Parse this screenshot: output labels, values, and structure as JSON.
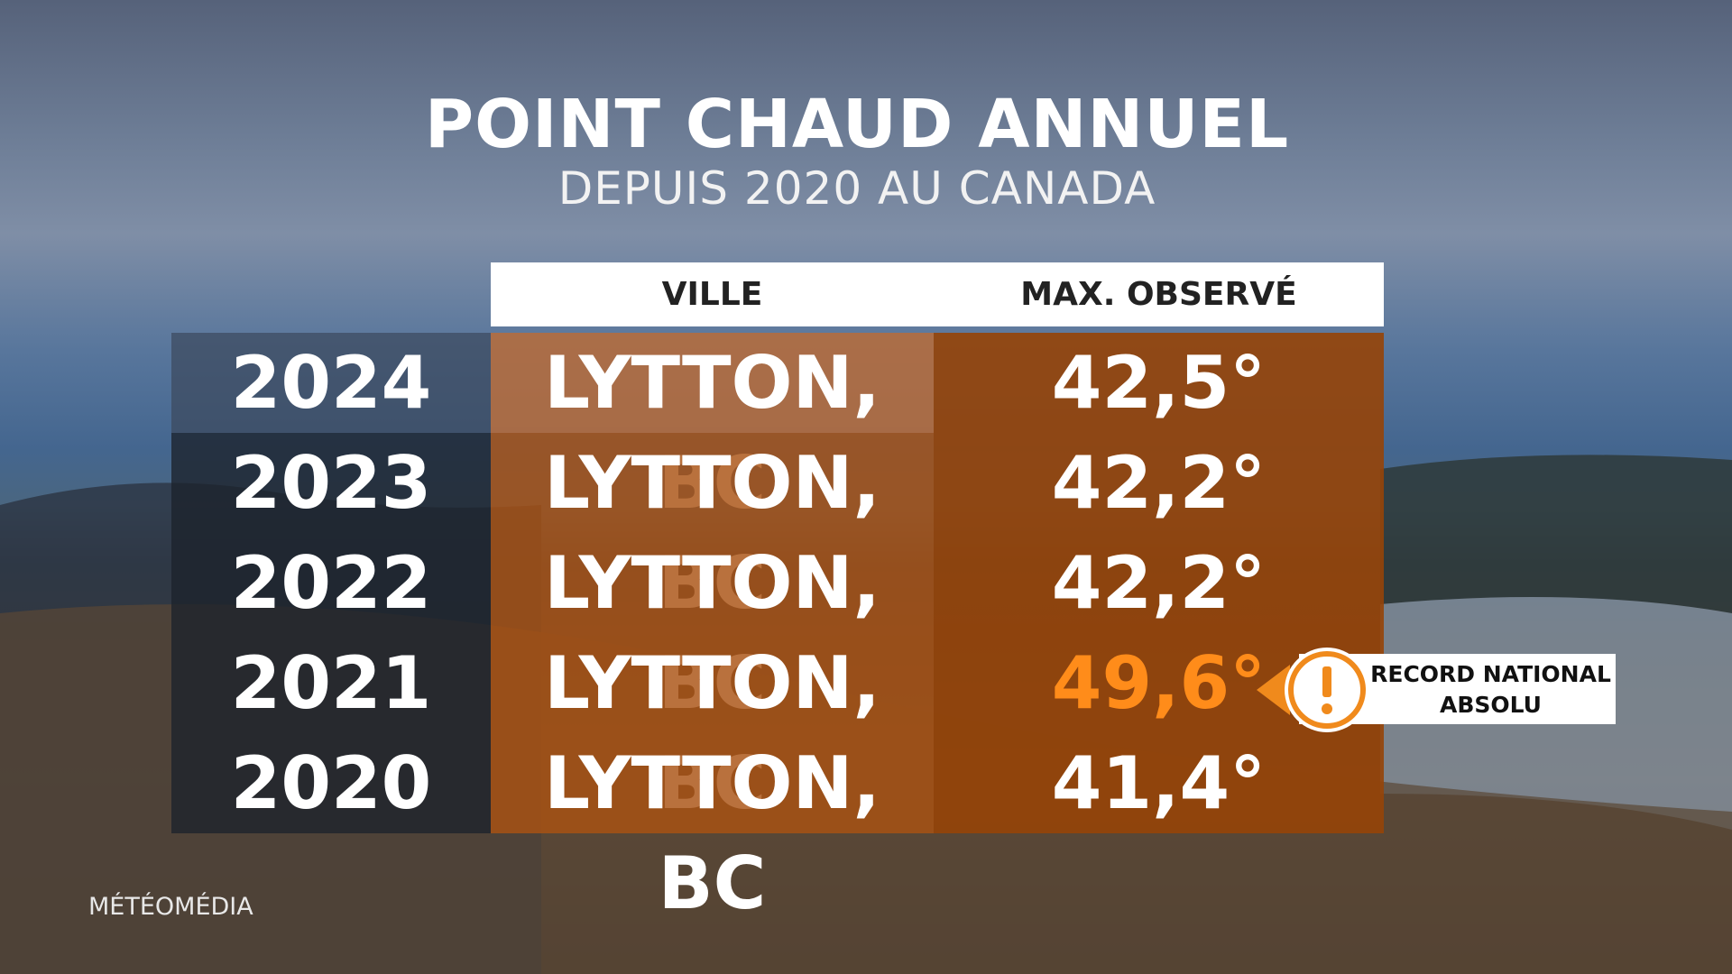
{
  "header": {
    "title": "POINT CHAUD ANNUEL",
    "subtitle": "DEPUIS 2020 AU CANADA"
  },
  "table": {
    "columns": [
      "VILLE",
      "MAX. OBSERVÉ"
    ],
    "rows": [
      [
        "2024",
        "LYTTON, BC",
        "42,5°"
      ],
      [
        "2023",
        "LYTTON, BC",
        "42,2°"
      ],
      [
        "2022",
        "LYTTON, BC",
        "42,2°"
      ],
      [
        "2021",
        "LYTTON, BC",
        "49,6°"
      ],
      [
        "2020",
        "LYTTON, BC",
        "41,4°"
      ]
    ]
  },
  "callout": {
    "row": 3,
    "lines": [
      "RECORD NATIONAL",
      "ABSOLU"
    ]
  },
  "logo": "MÉTÉOMÉDIA"
}
